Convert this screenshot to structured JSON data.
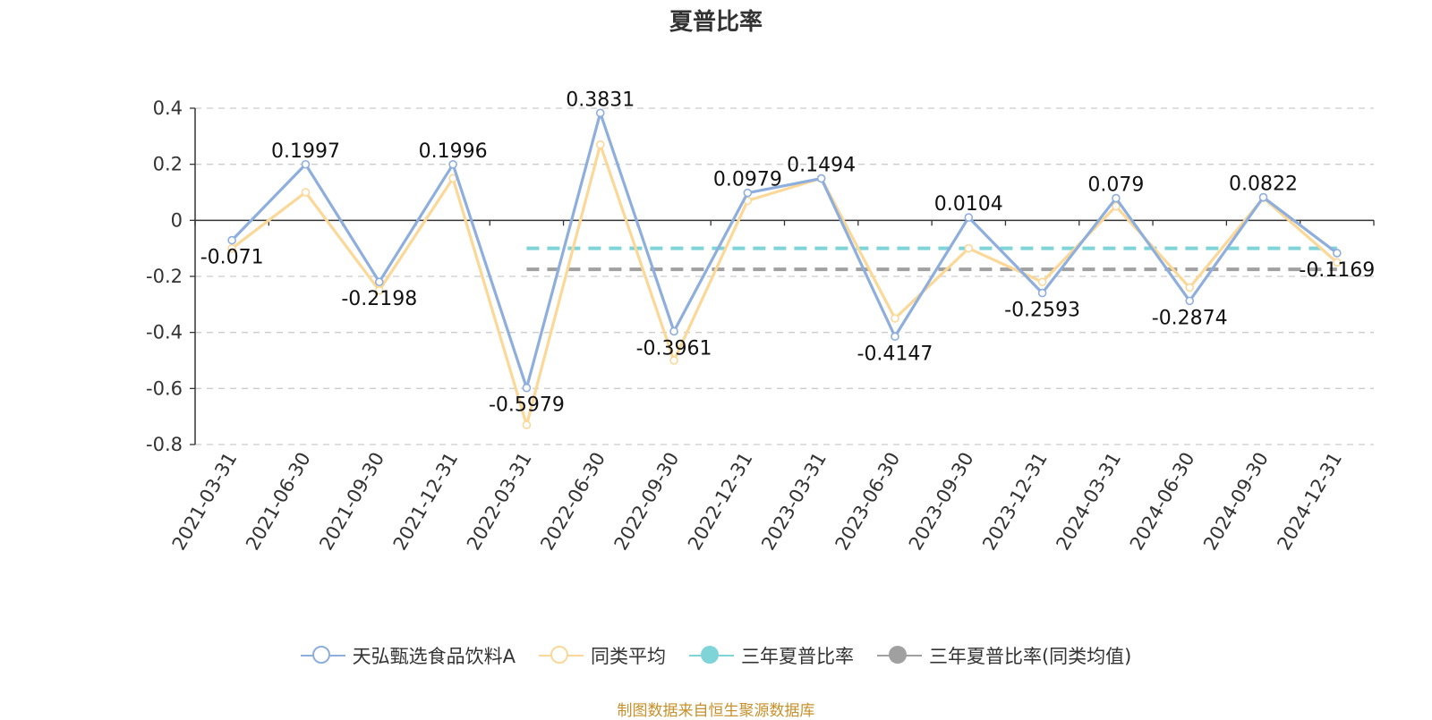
{
  "chart_data": {
    "type": "line",
    "title": "夏普比率",
    "categories": [
      "2021-03-31",
      "2021-06-30",
      "2021-09-30",
      "2021-12-31",
      "2022-03-31",
      "2022-06-30",
      "2022-09-30",
      "2022-12-31",
      "2023-03-31",
      "2023-06-30",
      "2023-09-30",
      "2023-12-31",
      "2024-03-31",
      "2024-06-30",
      "2024-09-30",
      "2024-12-31"
    ],
    "series": [
      {
        "name": "天弘甄选食品饮料A",
        "color": "#8eaedd",
        "values": [
          -0.071,
          0.1997,
          -0.2198,
          0.1996,
          -0.5979,
          0.3831,
          -0.3961,
          0.0979,
          0.1494,
          -0.4147,
          0.0104,
          -0.2593,
          0.079,
          -0.2874,
          0.0822,
          -0.1169
        ],
        "labels": [
          "-0.071",
          "0.1997",
          "-0.2198",
          "0.1996",
          "-0.5979",
          "0.3831",
          "-0.3961",
          "0.0979",
          "0.1494",
          "-0.4147",
          "0.0104",
          "-0.2593",
          "0.079",
          "-0.2874",
          "0.0822",
          "-0.1169"
        ]
      },
      {
        "name": "同类平均",
        "color": "#fbd898",
        "values": [
          -0.1,
          0.1,
          -0.25,
          0.15,
          -0.73,
          0.27,
          -0.5,
          0.07,
          0.15,
          -0.35,
          -0.1,
          -0.22,
          0.05,
          -0.24,
          0.08,
          -0.15
        ]
      }
    ],
    "reference_lines": [
      {
        "name": "三年夏普比率",
        "color": "#7fd4d7",
        "value": -0.1,
        "from": "2022-03-31",
        "to": "2024-12-31"
      },
      {
        "name": "三年夏普比率(同类均值)",
        "color": "#a0a0a0",
        "value": -0.175,
        "from": "2022-03-31",
        "to": "2024-12-31"
      }
    ],
    "yticks": [
      "0.4",
      "0.2",
      "0",
      "-0.2",
      "-0.4",
      "-0.6",
      "-0.8"
    ],
    "ylim": [
      -0.8,
      0.4
    ],
    "grid": true,
    "legend_position": "bottom"
  },
  "legend": {
    "fund": "天弘甄选食品饮料A",
    "peer_avg": "同类平均",
    "sharpe_3y": "三年夏普比率",
    "sharpe_3y_peer": "三年夏普比率(同类均值)"
  },
  "source": "制图数据来自恒生聚源数据库"
}
